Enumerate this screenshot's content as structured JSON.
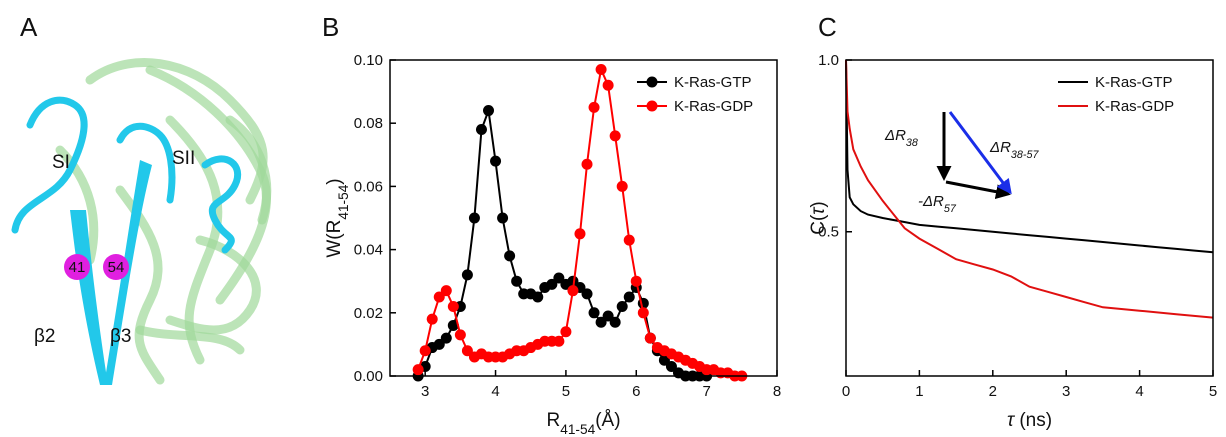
{
  "panel_a": {
    "label": "A",
    "loops": [
      "SI",
      "SII"
    ],
    "strands": [
      "β2",
      "β3"
    ],
    "residues": [
      "41",
      "54"
    ]
  },
  "chart_data": [
    {
      "type": "line",
      "panel_label": "B",
      "markers": true,
      "legend": "upper right",
      "xlabel": [
        "R",
        "41-54",
        "(Å)"
      ],
      "ylabel": [
        "W(R",
        "41-54",
        ")"
      ],
      "xlim": [
        2.5,
        8
      ],
      "xticks": [
        3,
        4,
        5,
        6,
        7,
        8
      ],
      "ylim": [
        0,
        0.1
      ],
      "yticks": [
        {
          "value": 0,
          "label": "0.00"
        },
        {
          "value": 0.02,
          "label": "0.02"
        },
        {
          "value": 0.04,
          "label": "0.04"
        },
        {
          "value": 0.06,
          "label": "0.06"
        },
        {
          "value": 0.08,
          "label": "0.08"
        },
        {
          "value": 0.1,
          "label": "0.10"
        }
      ],
      "series": [
        {
          "name": "K-Ras-GTP",
          "color": "#000000",
          "x": [
            2.9,
            3.0,
            3.1,
            3.2,
            3.3,
            3.4,
            3.5,
            3.6,
            3.7,
            3.8,
            3.9,
            4.0,
            4.1,
            4.2,
            4.3,
            4.4,
            4.5,
            4.6,
            4.7,
            4.8,
            4.9,
            5.0,
            5.1,
            5.2,
            5.3,
            5.4,
            5.5,
            5.6,
            5.7,
            5.8,
            5.9,
            6.0,
            6.1,
            6.2,
            6.3,
            6.4,
            6.5,
            6.6,
            6.7,
            6.8,
            6.9,
            7.0
          ],
          "values": [
            0.0,
            0.003,
            0.009,
            0.01,
            0.012,
            0.016,
            0.022,
            0.032,
            0.05,
            0.078,
            0.084,
            0.068,
            0.05,
            0.038,
            0.03,
            0.026,
            0.026,
            0.025,
            0.028,
            0.029,
            0.031,
            0.029,
            0.03,
            0.028,
            0.026,
            0.02,
            0.017,
            0.019,
            0.017,
            0.022,
            0.025,
            0.028,
            0.023,
            0.012,
            0.008,
            0.005,
            0.003,
            0.001,
            0.0,
            0.0,
            0.0,
            0.0
          ]
        },
        {
          "name": "K-Ras-GDP",
          "color": "#ff0000",
          "x": [
            2.9,
            3.0,
            3.1,
            3.2,
            3.3,
            3.4,
            3.5,
            3.6,
            3.7,
            3.8,
            3.9,
            4.0,
            4.1,
            4.2,
            4.3,
            4.4,
            4.5,
            4.6,
            4.7,
            4.8,
            4.9,
            5.0,
            5.1,
            5.2,
            5.3,
            5.4,
            5.5,
            5.6,
            5.7,
            5.8,
            5.9,
            6.0,
            6.1,
            6.2,
            6.3,
            6.4,
            6.5,
            6.6,
            6.7,
            6.8,
            6.9,
            7.0,
            7.1,
            7.2,
            7.3,
            7.4,
            7.5
          ],
          "values": [
            0.002,
            0.008,
            0.018,
            0.025,
            0.027,
            0.022,
            0.013,
            0.008,
            0.006,
            0.007,
            0.006,
            0.006,
            0.006,
            0.007,
            0.008,
            0.008,
            0.009,
            0.01,
            0.011,
            0.011,
            0.011,
            0.014,
            0.027,
            0.045,
            0.067,
            0.085,
            0.097,
            0.092,
            0.076,
            0.06,
            0.043,
            0.03,
            0.02,
            0.012,
            0.009,
            0.008,
            0.007,
            0.006,
            0.005,
            0.004,
            0.003,
            0.002,
            0.002,
            0.001,
            0.001,
            0.0,
            0.0
          ]
        }
      ]
    },
    {
      "type": "line",
      "panel_label": "C",
      "markers": false,
      "legend": "upper right",
      "xlabel": [
        "τ",
        " (ns)"
      ],
      "ylabel": [
        "C(",
        "τ",
        ")"
      ],
      "xlim": [
        0,
        5
      ],
      "xticks": [
        0,
        1,
        2,
        3,
        4,
        5
      ],
      "ylim": [
        0.08,
        1.0
      ],
      "yticks": [
        0.5,
        {
          "value": 1,
          "label": "1.0"
        }
      ],
      "annotations": [
        [
          "ΔR",
          "38"
        ],
        [
          "ΔR",
          "38",
          "-57"
        ],
        [
          "-ΔR",
          "57"
        ]
      ],
      "series": [
        {
          "name": "K-Ras-GTP",
          "color": "#000000",
          "x": [
            0,
            0.02,
            0.05,
            0.1,
            0.2,
            0.3,
            0.5,
            0.75,
            1,
            1.25,
            1.5,
            1.75,
            2,
            2.25,
            2.5,
            2.75,
            3,
            3.25,
            3.5,
            3.75,
            4,
            4.25,
            4.5,
            4.75,
            5
          ],
          "values": [
            1.0,
            0.68,
            0.6,
            0.58,
            0.56,
            0.55,
            0.54,
            0.53,
            0.52,
            0.515,
            0.51,
            0.505,
            0.5,
            0.495,
            0.49,
            0.485,
            0.48,
            0.475,
            0.47,
            0.465,
            0.46,
            0.455,
            0.45,
            0.445,
            0.44
          ]
        },
        {
          "name": "K-Ras-GDP",
          "color": "#e01010",
          "x": [
            0,
            0.02,
            0.05,
            0.1,
            0.2,
            0.3,
            0.5,
            0.8,
            1,
            1.25,
            1.5,
            1.75,
            2,
            2.25,
            2.5,
            2.75,
            3,
            3.25,
            3.5,
            3.75,
            4,
            4.5,
            5
          ],
          "values": [
            1.0,
            0.85,
            0.8,
            0.74,
            0.69,
            0.65,
            0.59,
            0.51,
            0.48,
            0.45,
            0.42,
            0.405,
            0.39,
            0.37,
            0.34,
            0.325,
            0.31,
            0.295,
            0.28,
            0.275,
            0.27,
            0.26,
            0.25
          ]
        }
      ]
    }
  ]
}
